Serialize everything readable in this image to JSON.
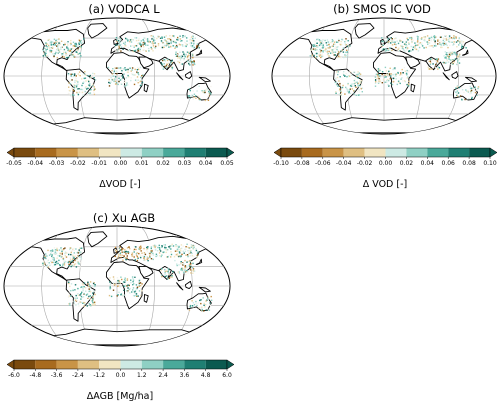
{
  "chart_data": [
    {
      "type": "heatmap",
      "title": "(a) VODCA L",
      "colorbar": {
        "label": "ΔVOD [-]",
        "ticks": [
          "-0.05",
          "-0.04",
          "-0.03",
          "-0.02",
          "-0.01",
          "0.00",
          "0.01",
          "0.02",
          "0.03",
          "0.04",
          "0.05"
        ],
        "range": [
          -0.05,
          0.05
        ]
      }
    },
    {
      "type": "heatmap",
      "title": "(b) SMOS IC VOD",
      "colorbar": {
        "label": "Δ VOD [-]",
        "ticks": [
          "-0.10",
          "-0.08",
          "-0.06",
          "-0.04",
          "-0.02",
          "0.00",
          "0.02",
          "0.04",
          "0.06",
          "0.08",
          "0.10"
        ],
        "range": [
          -0.1,
          0.1
        ]
      }
    },
    {
      "type": "heatmap",
      "title": "(c) Xu AGB",
      "colorbar": {
        "label": "ΔAGB [Mg/ha]",
        "ticks": [
          "-6.0",
          "-4.8",
          "-3.6",
          "-2.4",
          "-1.2",
          "0.0",
          "1.2",
          "2.4",
          "3.6",
          "4.8",
          "6.0"
        ],
        "range": [
          -6.0,
          6.0
        ]
      }
    }
  ],
  "colormap": [
    "#7a4a0e",
    "#a86b1f",
    "#c99447",
    "#dfbf82",
    "#f1e5c2",
    "#f6f4ee",
    "#cdeae4",
    "#8fd0c4",
    "#4aa99a",
    "#1f7f73",
    "#0b5a50"
  ],
  "colors": {
    "land": "#ffffff",
    "ocean": "#ffffff",
    "coast": "#000000",
    "grid": "#a8a8a8"
  }
}
